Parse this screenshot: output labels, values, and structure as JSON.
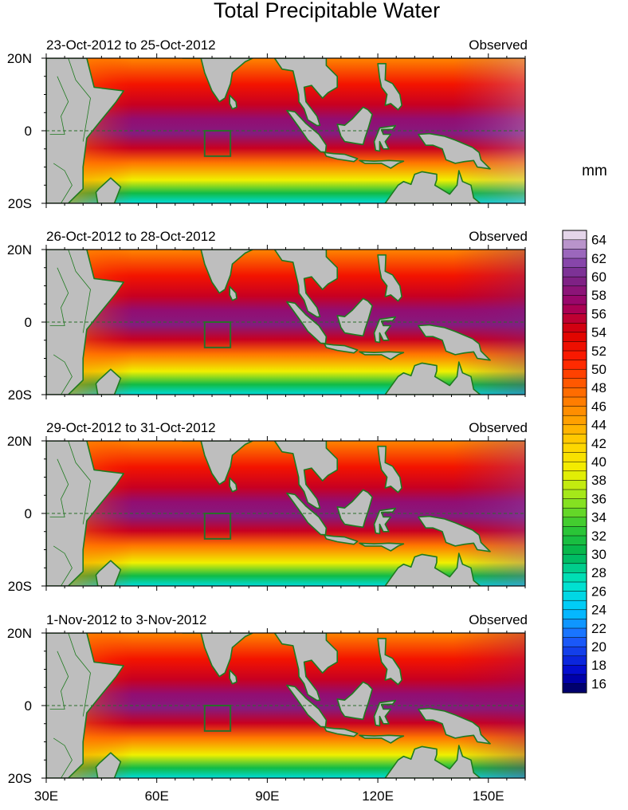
{
  "chart_data": {
    "type": "heatmap",
    "title": "Total Precipitable Water",
    "units": "mm",
    "xlim": [
      30,
      160
    ],
    "ylim": [
      -20,
      20
    ],
    "x_ticks": [
      {
        "value": 30,
        "label": "30E"
      },
      {
        "value": 60,
        "label": "60E"
      },
      {
        "value": 90,
        "label": "90E"
      },
      {
        "value": 120,
        "label": "120E"
      },
      {
        "value": 150,
        "label": "150E"
      }
    ],
    "y_ticks": [
      {
        "value": 20,
        "label": "20N"
      },
      {
        "value": 0,
        "label": "0"
      },
      {
        "value": -20,
        "label": "20S"
      }
    ],
    "box_region": {
      "lon": [
        73,
        80
      ],
      "lat": [
        -7,
        0
      ]
    },
    "colorbar": {
      "levels": [
        15,
        16,
        17,
        18,
        19,
        20,
        21,
        22,
        23,
        24,
        25,
        26,
        27,
        28,
        29,
        30,
        31,
        32,
        33,
        34,
        35,
        36,
        37,
        38,
        39,
        40,
        41,
        42,
        43,
        44,
        45,
        46,
        47,
        48,
        49,
        50,
        51,
        52,
        53,
        54,
        55,
        56,
        57,
        58,
        59,
        60,
        61,
        62,
        63,
        64,
        65
      ],
      "tick_labels": [
        "16",
        "18",
        "20",
        "22",
        "24",
        "26",
        "28",
        "30",
        "32",
        "34",
        "36",
        "38",
        "40",
        "42",
        "44",
        "46",
        "48",
        "50",
        "52",
        "54",
        "56",
        "58",
        "60",
        "62",
        "64"
      ]
    },
    "panels": [
      {
        "period": "23-Oct-2012 to 25-Oct-2012",
        "source": "Observed",
        "east_rise": 4
      },
      {
        "period": "26-Oct-2012 to 28-Oct-2012",
        "source": "Observed",
        "east_rise": 0
      },
      {
        "period": "29-Oct-2012 to 31-Oct-2012",
        "source": "Observed",
        "east_rise": 2
      },
      {
        "period": "1-Nov-2012 to 3-Nov-2012",
        "source": "Observed",
        "east_rise": -2
      }
    ]
  },
  "colors": {
    "land": "#bebebe",
    "coast": "#1f7a1f",
    "box": "#2a6e2a"
  }
}
